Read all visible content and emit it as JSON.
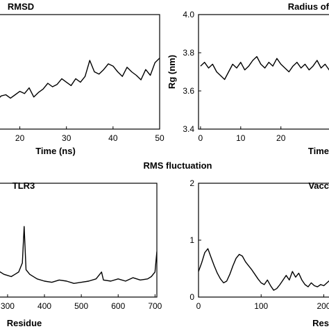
{
  "figure_title": "RMS fluctuation",
  "chart_data": [
    {
      "id": "rmsd",
      "type": "line",
      "title": "RMSD",
      "xlabel": "Time (ns)",
      "ylabel": "",
      "xlim": [
        15,
        50
      ],
      "ylim": [
        0,
        1
      ],
      "xticks": [
        20,
        30,
        40,
        50
      ],
      "xtick_labels": [
        "20",
        "30",
        "40",
        "50"
      ],
      "yticks": [],
      "ytick_labels": [],
      "series": [
        {
          "x": [
            15,
            16,
            17,
            18,
            19,
            20,
            21,
            22,
            23,
            24,
            25,
            26,
            27,
            28,
            29,
            30,
            31,
            32,
            33,
            34,
            35,
            36,
            37,
            38,
            39,
            40,
            41,
            42,
            43,
            44,
            45,
            46,
            47,
            48,
            49,
            50
          ],
          "y": [
            0.25,
            0.29,
            0.3,
            0.27,
            0.3,
            0.33,
            0.31,
            0.36,
            0.28,
            0.32,
            0.35,
            0.4,
            0.37,
            0.39,
            0.44,
            0.41,
            0.38,
            0.44,
            0.41,
            0.46,
            0.6,
            0.5,
            0.48,
            0.52,
            0.57,
            0.55,
            0.5,
            0.46,
            0.54,
            0.5,
            0.47,
            0.43,
            0.52,
            0.47,
            0.58,
            0.62
          ]
        }
      ]
    },
    {
      "id": "rg",
      "type": "line",
      "title": "Radius of",
      "xlabel": "Time",
      "ylabel": "Rg (nm)",
      "xlim": [
        -0.5,
        33
      ],
      "ylim": [
        3.4,
        4.0
      ],
      "xticks": [
        0,
        10,
        20
      ],
      "xtick_labels": [
        "0",
        "10",
        "20"
      ],
      "yticks": [
        3.4,
        3.6,
        3.8,
        4.0
      ],
      "ytick_labels": [
        "3.4",
        "3.6",
        "3.8",
        "4.0"
      ],
      "series": [
        {
          "x": [
            0,
            1,
            2,
            3,
            4,
            5,
            6,
            7,
            8,
            9,
            10,
            11,
            12,
            13,
            14,
            15,
            16,
            17,
            18,
            19,
            20,
            21,
            22,
            23,
            24,
            25,
            26,
            27,
            28,
            29,
            30,
            31,
            32,
            33
          ],
          "y": [
            3.73,
            3.75,
            3.72,
            3.74,
            3.7,
            3.68,
            3.66,
            3.7,
            3.74,
            3.72,
            3.75,
            3.71,
            3.73,
            3.76,
            3.78,
            3.74,
            3.72,
            3.75,
            3.73,
            3.77,
            3.74,
            3.72,
            3.7,
            3.73,
            3.75,
            3.72,
            3.74,
            3.71,
            3.73,
            3.76,
            3.72,
            3.74,
            3.71,
            3.73
          ]
        }
      ]
    },
    {
      "id": "rmsf-tlr3",
      "type": "line",
      "title": "TLR3",
      "xlabel": "Residue",
      "ylabel": "",
      "xlim": [
        270,
        705
      ],
      "ylim": [
        0,
        1
      ],
      "xticks": [
        300,
        400,
        500,
        600,
        700
      ],
      "xtick_labels": [
        "300",
        "400",
        "500",
        "600",
        "700"
      ],
      "yticks": [],
      "ytick_labels": [],
      "series": [
        {
          "x": [
            270,
            280,
            290,
            300,
            310,
            320,
            330,
            340,
            345,
            350,
            360,
            380,
            400,
            420,
            440,
            460,
            480,
            500,
            520,
            540,
            555,
            560,
            580,
            600,
            620,
            640,
            660,
            680,
            690,
            700,
            705
          ],
          "y": [
            0.24,
            0.22,
            0.2,
            0.19,
            0.18,
            0.2,
            0.22,
            0.3,
            0.62,
            0.24,
            0.2,
            0.16,
            0.14,
            0.13,
            0.15,
            0.14,
            0.12,
            0.13,
            0.14,
            0.16,
            0.22,
            0.15,
            0.14,
            0.16,
            0.14,
            0.17,
            0.15,
            0.16,
            0.18,
            0.22,
            0.4
          ]
        }
      ]
    },
    {
      "id": "rmsf-vacc",
      "type": "line",
      "title": "Vacc",
      "xlabel": "Res",
      "ylabel": "",
      "xlim": [
        0,
        215
      ],
      "ylim": [
        0,
        2
      ],
      "xticks": [
        0,
        100,
        200
      ],
      "xtick_labels": [
        "0",
        "100",
        "200"
      ],
      "yticks": [
        0,
        1,
        2
      ],
      "ytick_labels": [
        "0",
        "1",
        "2"
      ],
      "series": [
        {
          "x": [
            0,
            5,
            10,
            15,
            20,
            25,
            30,
            35,
            40,
            45,
            50,
            55,
            60,
            65,
            70,
            75,
            80,
            85,
            90,
            95,
            100,
            105,
            110,
            115,
            120,
            125,
            130,
            135,
            140,
            145,
            150,
            155,
            160,
            165,
            170,
            175,
            180,
            185,
            190,
            195,
            200,
            205,
            210,
            215
          ],
          "y": [
            0.45,
            0.6,
            0.78,
            0.85,
            0.7,
            0.55,
            0.42,
            0.32,
            0.25,
            0.28,
            0.4,
            0.55,
            0.68,
            0.75,
            0.72,
            0.62,
            0.55,
            0.48,
            0.4,
            0.32,
            0.25,
            0.22,
            0.3,
            0.2,
            0.12,
            0.15,
            0.22,
            0.3,
            0.38,
            0.3,
            0.45,
            0.35,
            0.42,
            0.3,
            0.22,
            0.18,
            0.25,
            0.2,
            0.18,
            0.22,
            0.2,
            0.25,
            0.3,
            0.28
          ]
        }
      ]
    }
  ]
}
